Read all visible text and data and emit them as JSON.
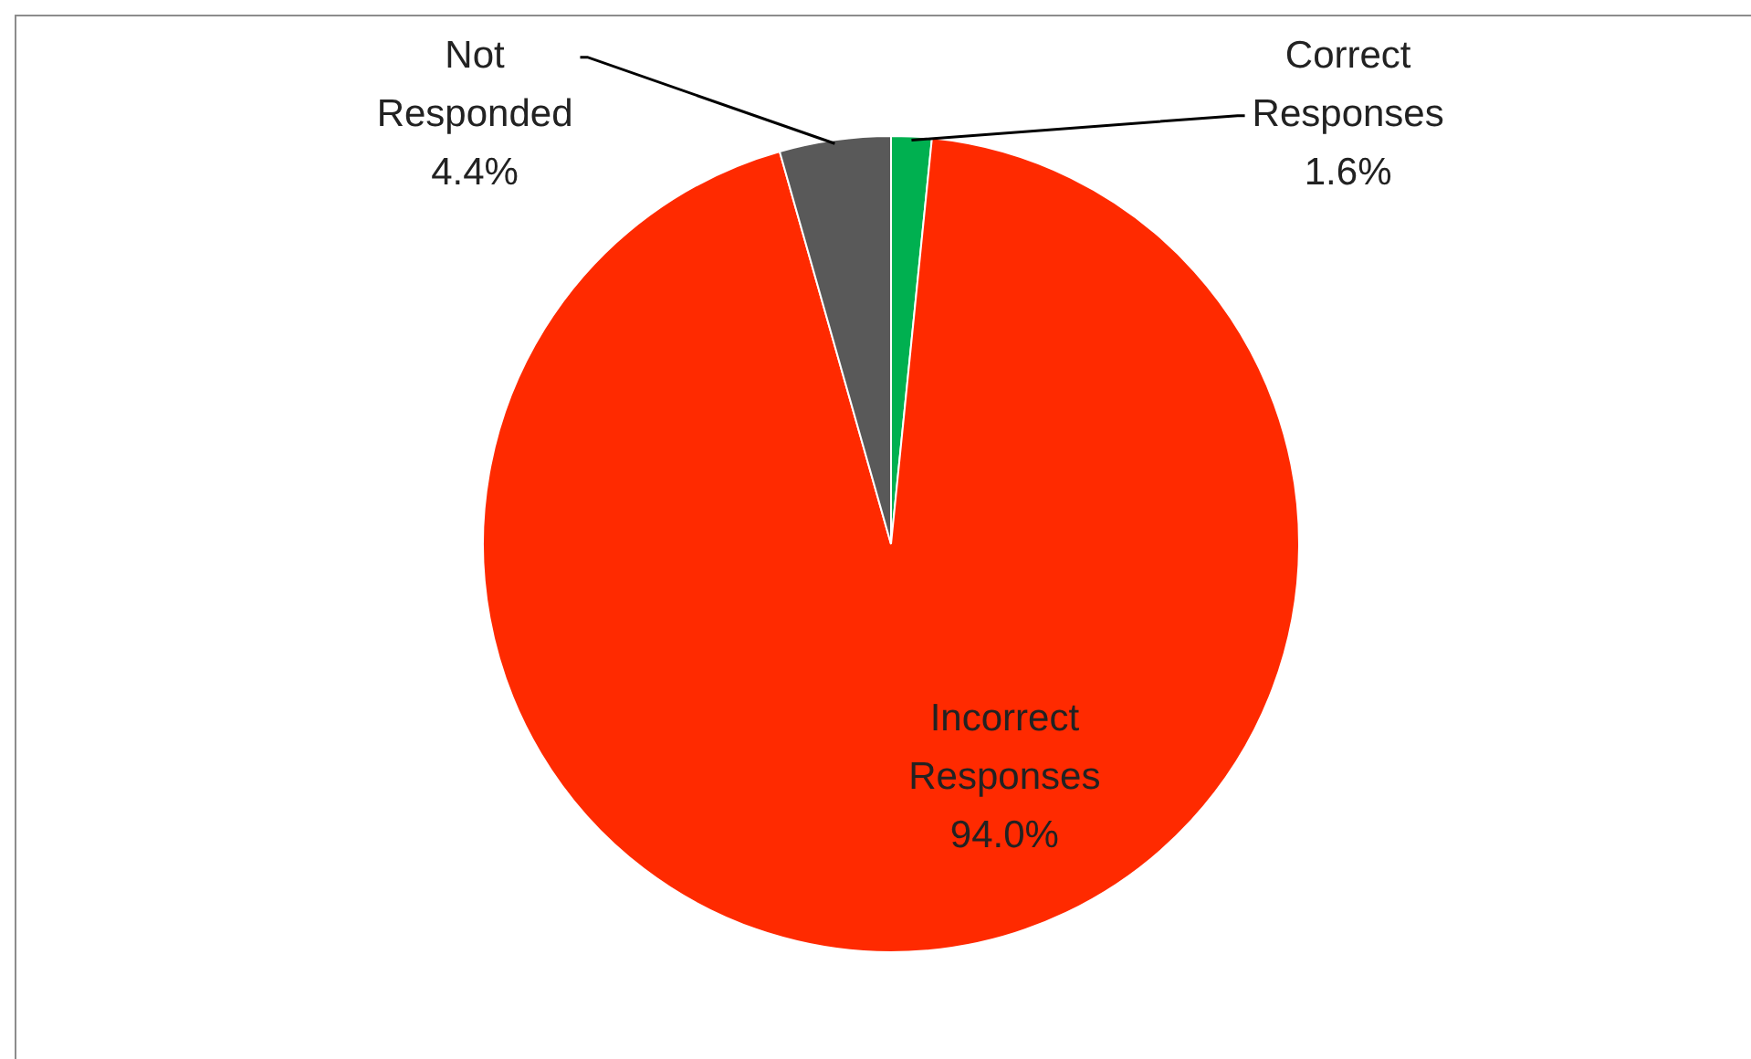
{
  "chart_data": {
    "type": "pie",
    "categories": [
      "Correct Responses",
      "Incorrect Responses",
      "Not Responded"
    ],
    "values": [
      1.6,
      94.0,
      4.4
    ],
    "value_labels": [
      "1.6%",
      "94.0%",
      "4.4%"
    ],
    "colors": [
      "#00b050",
      "#ff2a00",
      "#595959"
    ],
    "legend": false
  }
}
